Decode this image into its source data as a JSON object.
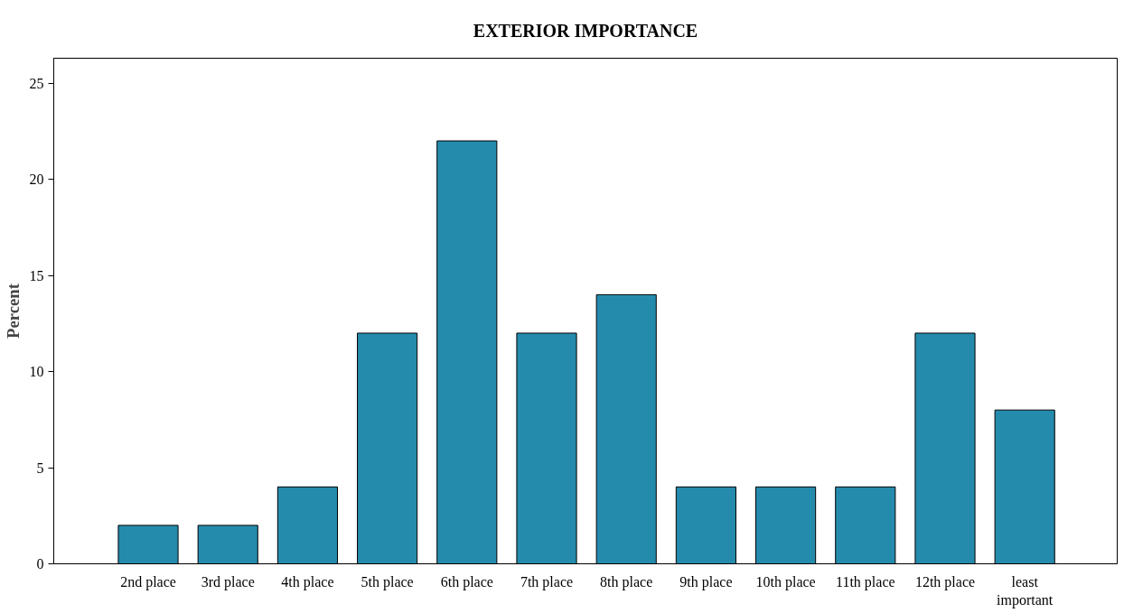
{
  "chart_data": {
    "type": "bar",
    "title": "EXTERIOR IMPORTANCE",
    "ylabel": "Percent",
    "categories": [
      "2nd place",
      "3rd place",
      "4th place",
      "5th place",
      "6th place",
      "7th place",
      "8th place",
      "9th place",
      "10th place",
      "11th place",
      "12th place",
      "least important"
    ],
    "values": [
      2,
      2,
      4,
      12,
      22,
      12,
      14,
      4,
      4,
      4,
      12,
      8
    ],
    "color": "#258bad",
    "ylim": [
      0,
      26.3
    ],
    "yticks": [
      0,
      5,
      10,
      15,
      20,
      25
    ],
    "grid": false
  }
}
